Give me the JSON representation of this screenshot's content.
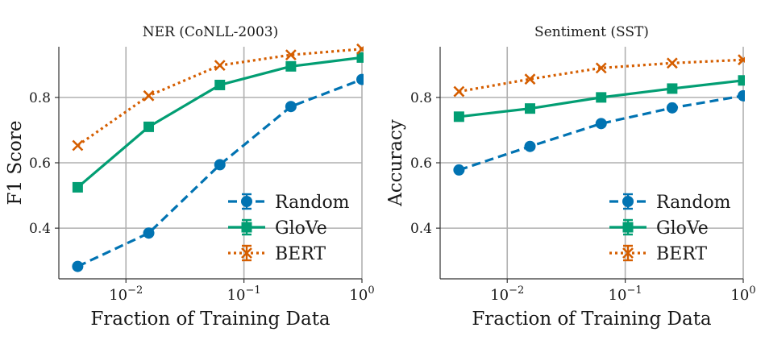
{
  "chart_data": [
    {
      "type": "line",
      "title": "NER (CoNLL-2003)",
      "xlabel": "Fraction of Training Data",
      "ylabel": "F1 Score",
      "xscale": "log",
      "x": [
        0.0039,
        0.0156,
        0.0625,
        0.25,
        1.0
      ],
      "xlim": [
        0.0027,
        1.0
      ],
      "ylim": [
        0.245,
        0.955
      ],
      "x_ticks": [
        {
          "value": 0.01,
          "base": "10",
          "exp": "−2"
        },
        {
          "value": 0.1,
          "base": "10",
          "exp": "−1"
        },
        {
          "value": 1.0,
          "base": "10",
          "exp": "0"
        }
      ],
      "y_ticks": [
        {
          "value": 0.4,
          "label": "0.4"
        },
        {
          "value": 0.6,
          "label": "0.6"
        },
        {
          "value": 0.8,
          "label": "0.8"
        }
      ],
      "grid": true,
      "legend_position": "bottom-right",
      "series": [
        {
          "name": "Random",
          "values": [
            0.283,
            0.385,
            0.594,
            0.772,
            0.855
          ],
          "color": "#0173b2",
          "linestyle": "dashed",
          "marker": "circle"
        },
        {
          "name": "GloVe",
          "values": [
            0.525,
            0.71,
            0.838,
            0.895,
            0.922
          ],
          "color": "#029e73",
          "linestyle": "solid",
          "marker": "square"
        },
        {
          "name": "BERT",
          "values": [
            0.653,
            0.805,
            0.898,
            0.93,
            0.948
          ],
          "color": "#d55e00",
          "linestyle": "dotted",
          "marker": "x"
        }
      ]
    },
    {
      "type": "line",
      "title": "Sentiment (SST)",
      "xlabel": "Fraction of Training Data",
      "ylabel": "Accuracy",
      "xscale": "log",
      "x": [
        0.0039,
        0.0156,
        0.0625,
        0.25,
        1.0
      ],
      "xlim": [
        0.0027,
        1.0
      ],
      "ylim": [
        0.245,
        0.955
      ],
      "x_ticks": [
        {
          "value": 0.01,
          "base": "10",
          "exp": "−2"
        },
        {
          "value": 0.1,
          "base": "10",
          "exp": "−1"
        },
        {
          "value": 1.0,
          "base": "10",
          "exp": "0"
        }
      ],
      "y_ticks": [
        {
          "value": 0.4,
          "label": "0.4"
        },
        {
          "value": 0.6,
          "label": "0.6"
        },
        {
          "value": 0.8,
          "label": "0.8"
        }
      ],
      "grid": true,
      "legend_position": "bottom-right",
      "series": [
        {
          "name": "Random",
          "values": [
            0.578,
            0.65,
            0.72,
            0.768,
            0.805
          ],
          "color": "#0173b2",
          "linestyle": "dashed",
          "marker": "circle"
        },
        {
          "name": "GloVe",
          "values": [
            0.741,
            0.766,
            0.8,
            0.827,
            0.852
          ],
          "color": "#029e73",
          "linestyle": "solid",
          "marker": "square"
        },
        {
          "name": "BERT",
          "values": [
            0.818,
            0.856,
            0.89,
            0.905,
            0.915
          ],
          "color": "#d55e00",
          "linestyle": "dotted",
          "marker": "x"
        }
      ]
    }
  ]
}
